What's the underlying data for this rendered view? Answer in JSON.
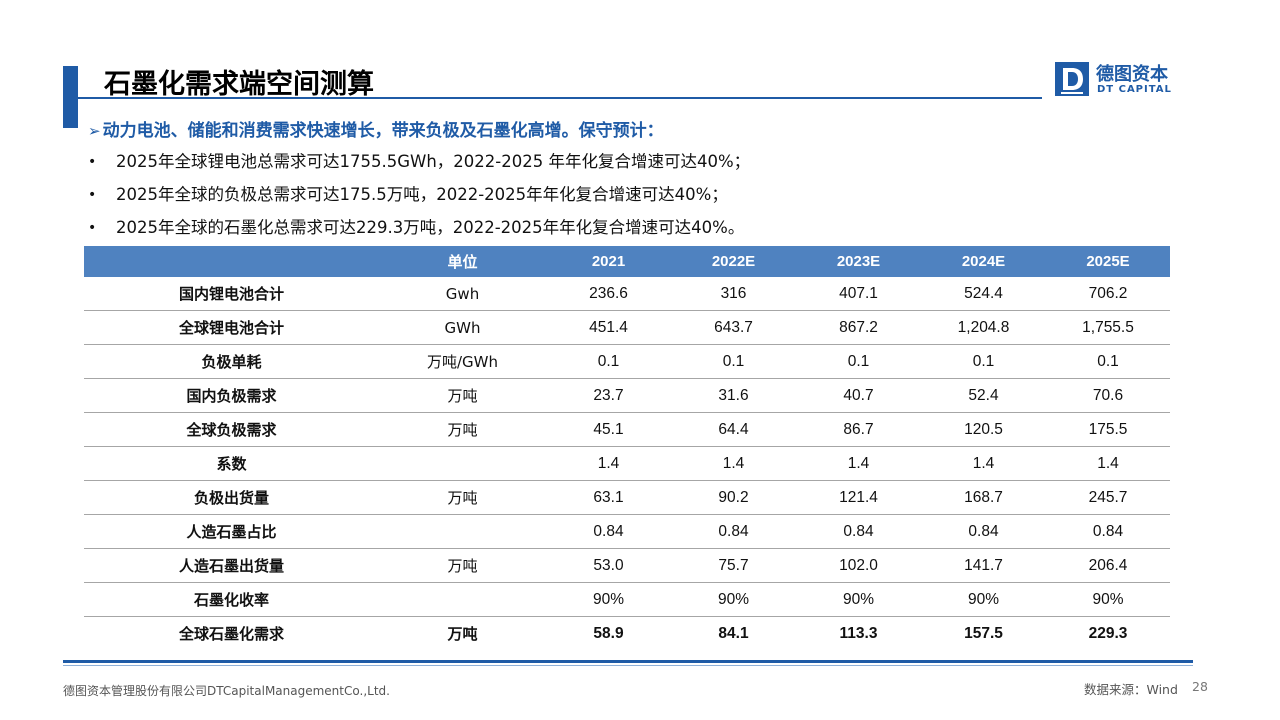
{
  "title": "石墨化需求端空间测算",
  "logo": {
    "cn": "德图资本",
    "en": "DT CAPITAL",
    "mark": "D"
  },
  "heading": "动力电池、储能和消费需求快速增长，带来负极及石墨化高增。保守预计：",
  "bullets": [
    "2025年全球锂电池总需求可达1755.5GWh，2022-2025 年年化复合增速可达40%；",
    "2025年全球的负极总需求可达175.5万吨，2022-2025年年化复合增速可达40%；",
    "2025年全球的石墨化总需求可达229.3万吨，2022-2025年年化复合增速可达40%。"
  ],
  "table": {
    "headers": [
      "",
      "单位",
      "2021",
      "2022E",
      "2023E",
      "2024E",
      "2025E"
    ],
    "rows": [
      [
        "国内锂电池合计",
        "Gwh",
        "236.6",
        "316",
        "407.1",
        "524.4",
        "706.2"
      ],
      [
        "全球锂电池合计",
        "GWh",
        "451.4",
        "643.7",
        "867.2",
        "1,204.8",
        "1,755.5"
      ],
      [
        "负极单耗",
        "万吨/GWh",
        "0.1",
        "0.1",
        "0.1",
        "0.1",
        "0.1"
      ],
      [
        "国内负极需求",
        "万吨",
        "23.7",
        "31.6",
        "40.7",
        "52.4",
        "70.6"
      ],
      [
        "全球负极需求",
        "万吨",
        "45.1",
        "64.4",
        "86.7",
        "120.5",
        "175.5"
      ],
      [
        "系数",
        "",
        "1.4",
        "1.4",
        "1.4",
        "1.4",
        "1.4"
      ],
      [
        "负极出货量",
        "万吨",
        "63.1",
        "90.2",
        "121.4",
        "168.7",
        "245.7"
      ],
      [
        "人造石墨占比",
        "",
        "0.84",
        "0.84",
        "0.84",
        "0.84",
        "0.84"
      ],
      [
        "人造石墨出货量",
        "万吨",
        "53.0",
        "75.7",
        "102.0",
        "141.7",
        "206.4"
      ],
      [
        "石墨化收率",
        "",
        "90%",
        "90%",
        "90%",
        "90%",
        "90%"
      ],
      [
        "全球石墨化需求",
        "万吨",
        "58.9",
        "84.1",
        "113.3",
        "157.5",
        "229.3"
      ]
    ]
  },
  "footer": {
    "company": "德图资本管理股份有限公司DTCapitalManagementCo.,Ltd.",
    "source": "数据来源：Wind",
    "page": "28"
  },
  "colors": {
    "brand": "#1f5ba6",
    "header_bg": "#4f82c0"
  }
}
